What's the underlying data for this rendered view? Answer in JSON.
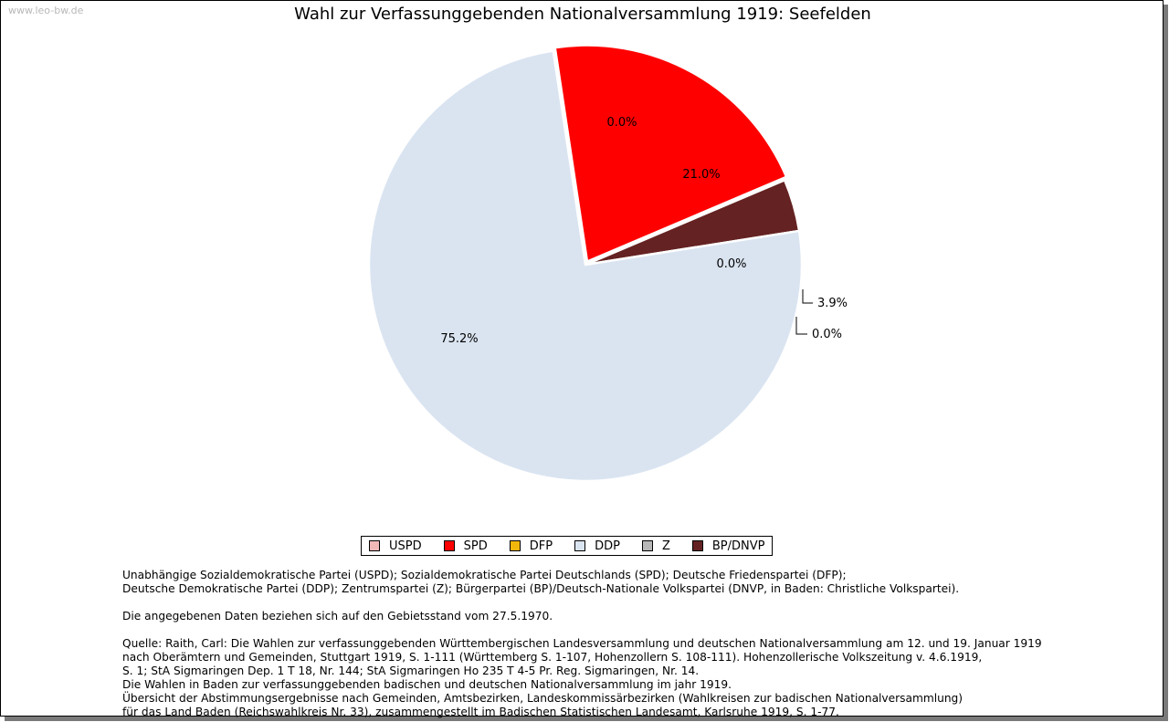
{
  "watermark": "www.leo-bw.de",
  "chart_data": {
    "type": "pie",
    "title": "Wahl zur Verfassunggebenden Nationalversammlung 1919: Seefelden",
    "slices": [
      {
        "name": "USPD",
        "value": 0.0,
        "label": "0.0%",
        "color": "#f2b8b8"
      },
      {
        "name": "SPD",
        "value": 21.0,
        "label": "21.0%",
        "color": "#ff0000"
      },
      {
        "name": "DFP",
        "value": 0.0,
        "label": "0.0%",
        "color": "#f2b70c"
      },
      {
        "name": "BP/DNVP",
        "value": 3.9,
        "label": "3.9%",
        "color": "#652222"
      },
      {
        "name": "Z",
        "value": 0.0,
        "label": "0.0%",
        "color": "#b8b8b8"
      },
      {
        "name": "DDP",
        "value": 75.2,
        "label": "75.2%",
        "color": "#dae4f1"
      }
    ],
    "legend": [
      "USPD",
      "SPD",
      "DFP",
      "DDP",
      "Z",
      "BP/DNVP"
    ],
    "legend_placement": "bottom"
  },
  "notes": [
    "Unabhängige Sozialdemokratische Partei (USPD); Sozialdemokratische Partei Deutschlands (SPD); Deutsche Friedenspartei (DFP);\nDeutsche Demokratische Partei (DDP); Zentrumspartei (Z); Bürgerpartei (BP)/Deutsch-Nationale Volkspartei (DNVP, in Baden: Christliche Volkspartei).",
    "Die angegebenen Daten beziehen sich auf den Gebietsstand vom 27.5.1970.",
    "Quelle: Raith, Carl: Die Wahlen zur verfassunggebenden Württembergischen Landesversammlung und deutschen Nationalversammlung am 12. und 19. Januar 1919\nnach Oberämtern und Gemeinden, Stuttgart 1919, S. 1-111 (Württemberg S. 1-107, Hohenzollern S. 108-111). Hohenzollerische Volkszeitung v. 4.6.1919,\nS. 1; StA Sigmaringen Dep. 1 T 18, Nr. 144; StA Sigmaringen Ho 235 T 4-5 Pr. Reg. Sigmaringen, Nr. 14.\nDie Wahlen in Baden zur verfassunggebenden badischen und deutschen Nationalversammlung im jahr 1919.\nÜbersicht der Abstimmungsergebnisse nach Gemeinden, Amtsbezirken, Landeskommissärbezirken (Wahlkreisen zur badischen Nationalversammlung)\nfür das Land Baden (Reichswahlkreis Nr. 33), zusammengestellt im Badischen Statistischen Landesamt, Karlsruhe 1919, S. 1-77."
  ]
}
